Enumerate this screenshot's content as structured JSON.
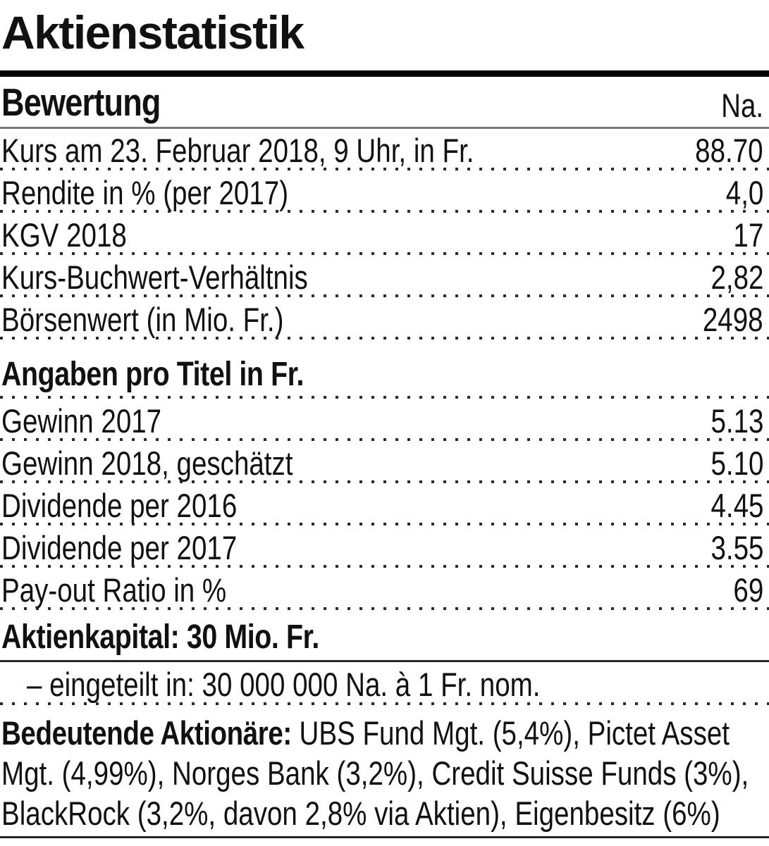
{
  "title": "Aktienstatistik",
  "colors": {
    "value_column_shade": "#efeee6",
    "top_bar": "#000000",
    "header_rule_gray": "#7a7a7a",
    "section_rule_dark": "#262626",
    "text": "#111111"
  },
  "bewertung": {
    "header_label": "Bewertung",
    "unit_label": "Na.",
    "rows": [
      {
        "label": "Kurs am 23. Februar 2018, 9 Uhr, in Fr.",
        "value": "88.70"
      },
      {
        "label": "Rendite in % (per 2017)",
        "value": "4,0"
      },
      {
        "label": "KGV 2018",
        "value": "17"
      },
      {
        "label": "Kurs-Buchwert-Verhältnis",
        "value": "2,82"
      },
      {
        "label": "Börsenwert (in Mio. Fr.)",
        "value": "2498"
      }
    ]
  },
  "pro_titel": {
    "header": "Angaben pro Titel in Fr.",
    "rows": [
      {
        "label": "Gewinn 2017",
        "value": "5.13"
      },
      {
        "label": "Gewinn 2018, geschätzt",
        "value": "5.10"
      },
      {
        "label": "Dividende per 2016",
        "value": "4.45"
      },
      {
        "label": "Dividende per 2017",
        "value": "3.55"
      },
      {
        "label": "Pay-out Ratio in %",
        "value": "69"
      }
    ]
  },
  "aktienkapital": {
    "heading": "Aktienkapital: 30 Mio. Fr.",
    "detail": "– eingeteilt in: 30 000 000 Na. à 1 Fr. nom."
  },
  "aktionaere": {
    "lead": "Bedeutende Aktionäre:",
    "line1_rest": " UBS Fund Mgt. (5,4%), Pictet Asset",
    "line2": "Mgt. (4,99%), Norges Bank (3,2%), Credit Suisse Funds (3%),",
    "line3": "BlackRock (3,2%, davon 2,8% via Aktien), Eigenbesitz (6%)"
  },
  "chart_data": {
    "type": "table",
    "title": "Aktienstatistik",
    "columns": [
      "Bewertung",
      "Na."
    ],
    "rows": [
      [
        "Kurs am 23. Februar 2018, 9 Uhr, in Fr.",
        "88.70"
      ],
      [
        "Rendite in % (per 2017)",
        "4,0"
      ],
      [
        "KGV 2018",
        "17"
      ],
      [
        "Kurs-Buchwert-Verhältnis",
        "2,82"
      ],
      [
        "Börsenwert (in Mio. Fr.)",
        "2498"
      ],
      [
        "Angaben pro Titel in Fr.",
        ""
      ],
      [
        "Gewinn 2017",
        "5.13"
      ],
      [
        "Gewinn 2018, geschätzt",
        "5.10"
      ],
      [
        "Dividende per 2016",
        "4.45"
      ],
      [
        "Dividende per 2017",
        "3.55"
      ],
      [
        "Pay-out Ratio in %",
        "69"
      ],
      [
        "Aktienkapital: 30 Mio. Fr.",
        ""
      ],
      [
        "– eingeteilt in: 30 000 000 Na. à 1 Fr. nom.",
        ""
      ],
      [
        "Bedeutende Aktionäre: UBS Fund Mgt. (5,4%), Pictet Asset Mgt. (4,99%), Norges Bank (3,2%), Credit Suisse Funds (3%), BlackRock (3,2%, davon 2,8% via Aktien), Eigenbesitz (6%)",
        ""
      ]
    ]
  }
}
